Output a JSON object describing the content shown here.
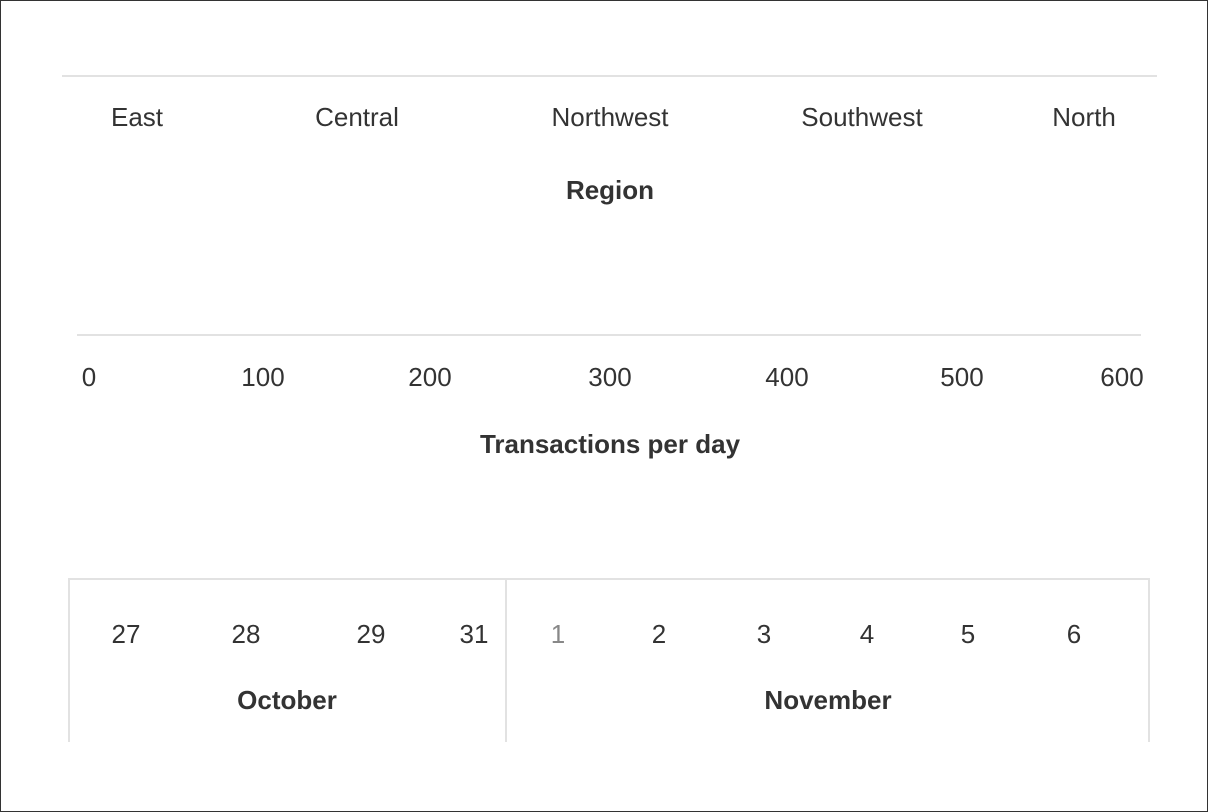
{
  "region_axis": {
    "labels": [
      "East",
      "Central",
      "Northwest",
      "Southwest",
      "North"
    ],
    "title": "Region"
  },
  "value_axis": {
    "ticks": [
      "0",
      "100",
      "200",
      "300",
      "400",
      "500",
      "600"
    ],
    "title": "Transactions per day"
  },
  "date_axis": {
    "months": [
      {
        "name": "October",
        "days": [
          "27",
          "28",
          "29",
          "31"
        ]
      },
      {
        "name": "November",
        "days": [
          "1",
          "2",
          "3",
          "4",
          "5",
          "6"
        ]
      }
    ]
  }
}
